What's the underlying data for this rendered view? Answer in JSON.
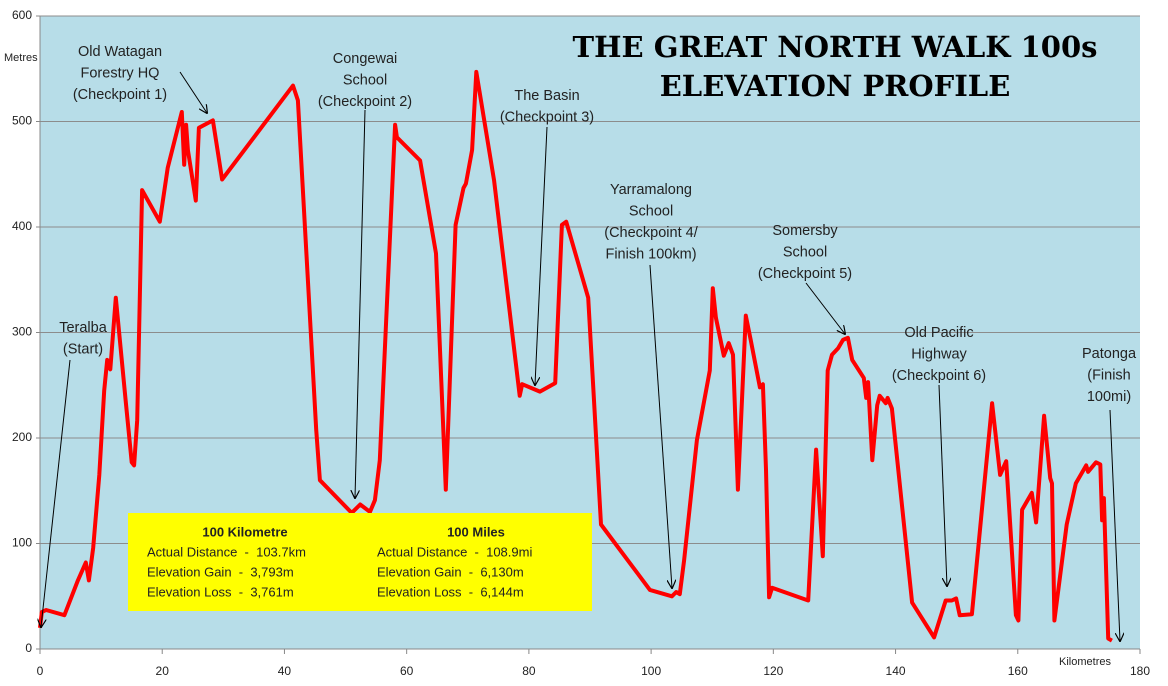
{
  "chart_data": {
    "type": "line",
    "title": [
      "THE GREAT NORTH WALK 100s",
      "ELEVATION PROFILE"
    ],
    "y_label": "Metres",
    "x_label": "Kilometres",
    "color": "#ff0000",
    "background": "#b7dde8",
    "grid": true,
    "xlim": [
      0,
      180
    ],
    "ylim": [
      0,
      600
    ],
    "xticks": [
      0,
      20,
      40,
      60,
      80,
      100,
      120,
      140,
      160,
      180
    ],
    "yticks": [
      0,
      100,
      200,
      300,
      400,
      500,
      600
    ],
    "x": [
      0,
      0.3,
      1,
      4,
      6.2,
      7.5,
      8,
      8.7,
      9.7,
      10.5,
      11,
      11.5,
      12.4,
      14,
      15,
      15.4,
      15.9,
      16.7,
      19.6,
      20.9,
      23.2,
      23.6,
      23.9,
      24.2,
      25.5,
      26,
      28.3,
      29.8,
      41.4,
      42.2,
      45.2,
      45.8,
      51,
      52.4,
      54,
      54.8,
      55.6,
      58.1,
      58.4,
      62.2,
      64.8,
      66.4,
      68,
      69.3,
      69.7,
      70.7,
      71.4,
      74.3,
      78.5,
      78.9,
      81.8,
      84.3,
      85.4,
      86.1,
      89.7,
      91.8,
      99.8,
      103.4,
      104.1,
      104.7,
      105.4,
      107.5,
      109.6,
      110.1,
      110.6,
      111.9,
      112.7,
      113.4,
      114.2,
      115.5,
      116.3,
      117.8,
      118.3,
      118.8,
      119.3,
      119.8,
      125.7,
      127,
      128.1,
      128.9,
      129.6,
      130.6,
      131.4,
      132.2,
      132.9,
      134.8,
      135.2,
      135.5,
      136.2,
      137,
      137.4,
      138.4,
      138.7,
      139.4,
      142.7,
      146.3,
      148.2,
      149.2,
      149.9,
      150.5,
      152.5,
      155.8,
      157.1,
      158.1,
      159.7,
      160.1,
      160.7,
      162.3,
      163,
      164.3,
      165.3,
      165.6,
      166,
      168,
      169.5,
      171.2,
      171.5,
      172.8,
      173.5,
      173.8,
      174.1,
      174.8,
      175.4
    ],
    "values": [
      20,
      35,
      37,
      32,
      65,
      82,
      65,
      96,
      165,
      245,
      274,
      265,
      333,
      236,
      177,
      174,
      217,
      435,
      405,
      456,
      509,
      459,
      497,
      473,
      425,
      494,
      501,
      445,
      534,
      520,
      208,
      160,
      129,
      137,
      130,
      141,
      179,
      497,
      485,
      463,
      375,
      151,
      402,
      437,
      441,
      473,
      547,
      444,
      240,
      251,
      244,
      252,
      402,
      405,
      333,
      118,
      56,
      50,
      54,
      52,
      84,
      198,
      264,
      342,
      314,
      278,
      290,
      279,
      151,
      316,
      293,
      248,
      251,
      170,
      49,
      58,
      46,
      189,
      88,
      264,
      279,
      285,
      293,
      295,
      274,
      257,
      238,
      253,
      179,
      231,
      240,
      233,
      238,
      228,
      44,
      11,
      46,
      46,
      48,
      32,
      33,
      233,
      165,
      178,
      32,
      27,
      132,
      148,
      120,
      221,
      162,
      157,
      27,
      118,
      157,
      174,
      168,
      177,
      175,
      122,
      143,
      10,
      8
    ],
    "annotations": [
      {
        "text": [
          "Teralba",
          "(Start)"
        ]
      },
      {
        "text": [
          "Old Watagan",
          "Forestry HQ",
          "(Checkpoint 1)"
        ]
      },
      {
        "text": [
          "Congewai",
          "School",
          "(Checkpoint 2)"
        ]
      },
      {
        "text": [
          "The Basin",
          "(Checkpoint 3)"
        ]
      },
      {
        "text": [
          "Yarramalong",
          "School",
          "(Checkpoint 4/",
          "Finish 100km)"
        ]
      },
      {
        "text": [
          "Somersby",
          "School",
          "(Checkpoint 5)"
        ]
      },
      {
        "text": [
          "Old Pacific",
          "Highway",
          "(Checkpoint 6)"
        ]
      },
      {
        "text": [
          "Patonga",
          "(Finish",
          "100mi)"
        ]
      }
    ],
    "info_box": {
      "color": "#ffff00",
      "columns": [
        {
          "title": "100 Kilometre",
          "rows": [
            "Actual Distance  -  103.7km",
            "Elevation Gain  -  3,793m",
            "Elevation Loss  -  3,761m"
          ]
        },
        {
          "title": "100 Miles",
          "rows": [
            "Actual Distance  -  108.9mi",
            "Elevation Gain  -  6,130m",
            "Elevation Loss  -  6,144m"
          ]
        }
      ]
    }
  }
}
